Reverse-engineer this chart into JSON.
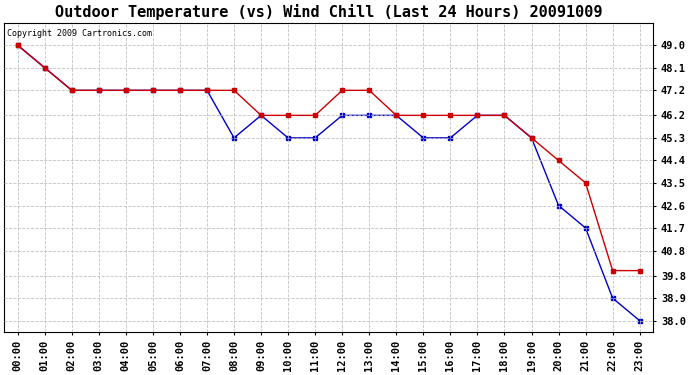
{
  "title": "Outdoor Temperature (vs) Wind Chill (Last 24 Hours) 20091009",
  "copyright": "Copyright 2009 Cartronics.com",
  "x_labels": [
    "00:00",
    "01:00",
    "02:00",
    "03:00",
    "04:00",
    "05:00",
    "06:00",
    "07:00",
    "08:00",
    "09:00",
    "10:00",
    "11:00",
    "12:00",
    "13:00",
    "14:00",
    "15:00",
    "16:00",
    "17:00",
    "18:00",
    "19:00",
    "20:00",
    "21:00",
    "22:00",
    "23:00"
  ],
  "outdoor_temp": [
    49.0,
    48.1,
    47.2,
    47.2,
    47.2,
    47.2,
    47.2,
    47.2,
    47.2,
    46.2,
    46.2,
    46.2,
    47.2,
    47.2,
    46.2,
    46.2,
    46.2,
    46.2,
    46.2,
    45.3,
    44.4,
    43.5,
    40.0,
    40.0
  ],
  "wind_chill": [
    49.0,
    48.1,
    47.2,
    47.2,
    47.2,
    47.2,
    47.2,
    47.2,
    45.3,
    46.2,
    45.3,
    45.3,
    46.2,
    46.2,
    46.2,
    45.3,
    45.3,
    46.2,
    46.2,
    45.3,
    42.6,
    41.7,
    38.9,
    38.0
  ],
  "temp_color": "#cc0000",
  "wind_color": "#0000cc",
  "ylim_min": 37.55,
  "ylim_max": 49.9,
  "yticks": [
    38.0,
    38.9,
    39.8,
    40.8,
    41.7,
    42.6,
    43.5,
    44.4,
    45.3,
    46.2,
    47.2,
    48.1,
    49.0
  ],
  "background_color": "#ffffff",
  "grid_color": "#bbbbbb",
  "title_fontsize": 11,
  "label_fontsize": 7.5,
  "figwidth": 6.9,
  "figheight": 3.75,
  "dpi": 100
}
